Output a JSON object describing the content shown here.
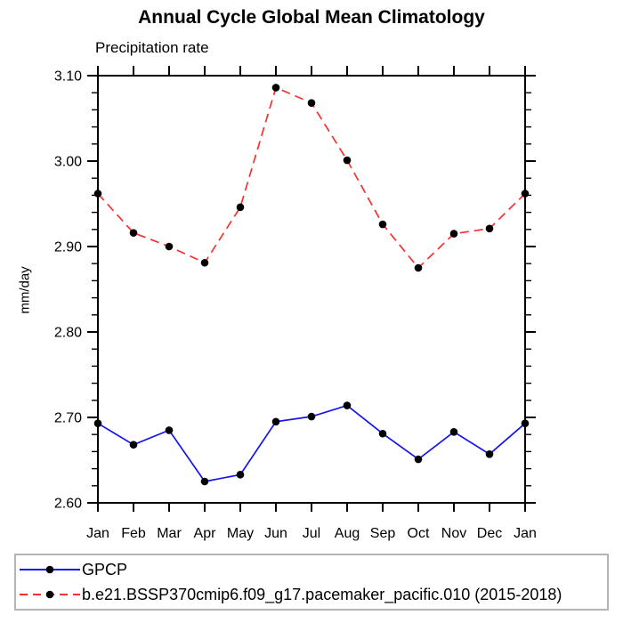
{
  "chart_data": {
    "type": "line",
    "title": "Annual Cycle Global Mean Climatology",
    "subtitle": "Precipitation rate",
    "xlabel": "",
    "ylabel": "mm/day",
    "categories": [
      "Jan",
      "Feb",
      "Mar",
      "Apr",
      "May",
      "Jun",
      "Jul",
      "Aug",
      "Sep",
      "Oct",
      "Nov",
      "Dec",
      "Jan"
    ],
    "ylim": [
      2.6,
      3.1
    ],
    "yticks": [
      "2.60",
      "2.70",
      "2.80",
      "2.90",
      "3.00",
      "3.10"
    ],
    "ytick_major_interval": 0.1,
    "ytick_minor_interval": 0.02,
    "grid": false,
    "legend_position": "bottom-box",
    "axis_color": "#000000",
    "series": [
      {
        "name": "GPCP",
        "style": "solid",
        "color": "#1414f0",
        "marker": "circle",
        "marker_color": "#000000",
        "values": [
          2.693,
          2.668,
          2.685,
          2.625,
          2.633,
          2.695,
          2.701,
          2.714,
          2.681,
          2.651,
          2.683,
          2.657,
          2.693
        ]
      },
      {
        "name": "b.e21.BSSP370cmip6.f09_g17.pacemaker_pacific.010 (2015-2018)",
        "style": "dashed",
        "color": "#f83030",
        "marker": "circle",
        "marker_color": "#000000",
        "values": [
          2.962,
          2.916,
          2.9,
          2.881,
          2.946,
          3.086,
          3.068,
          3.001,
          2.926,
          2.875,
          2.915,
          2.921,
          2.962
        ]
      }
    ]
  }
}
